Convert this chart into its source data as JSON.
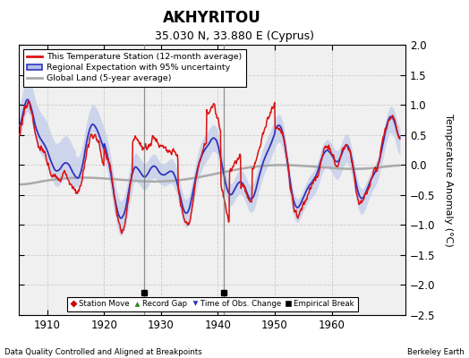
{
  "title": "AKHYRITOU",
  "subtitle": "35.030 N, 33.880 E (Cyprus)",
  "xlabel_bottom": "Data Quality Controlled and Aligned at Breakpoints",
  "xlabel_right": "Berkeley Earth",
  "ylabel": "Temperature Anomaly (°C)",
  "xlim": [
    1905,
    1973
  ],
  "ylim": [
    -2.5,
    2.0
  ],
  "yticks": [
    -2.5,
    -2.0,
    -1.5,
    -1.0,
    -0.5,
    0.0,
    0.5,
    1.0,
    1.5,
    2.0
  ],
  "xticks": [
    1910,
    1920,
    1930,
    1940,
    1950,
    1960
  ],
  "background_color": "#f0f0f0",
  "grid_color": "#cccccc",
  "empirical_breaks": [
    1927,
    1941
  ],
  "vertical_lines": [
    1927,
    1941
  ],
  "seed": 12
}
